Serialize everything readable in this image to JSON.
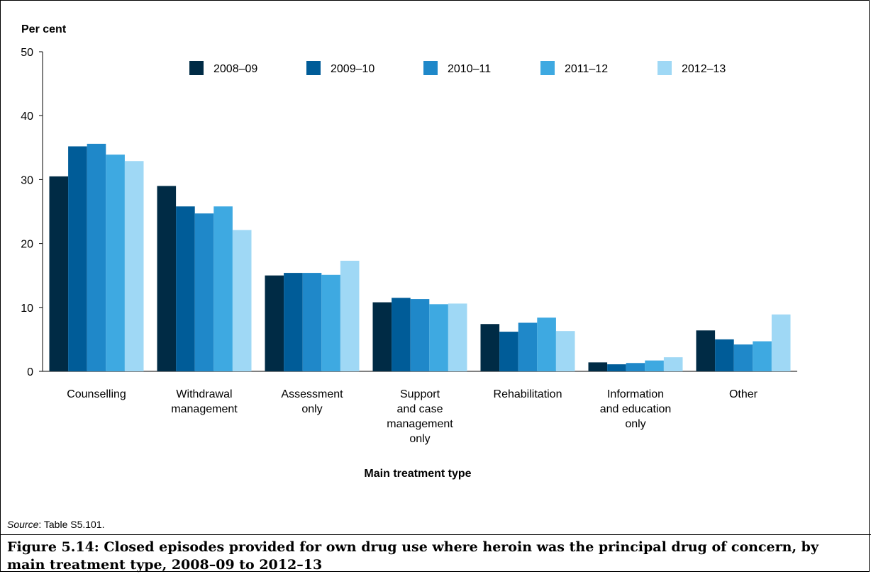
{
  "chart_data": {
    "type": "bar",
    "ylabel": "Per cent",
    "xlabel": "Main treatment type",
    "ylim": [
      0,
      50
    ],
    "yticks": [
      0,
      10,
      20,
      30,
      40,
      50
    ],
    "grid": false,
    "legend_position": "top",
    "categories": [
      [
        "Counselling"
      ],
      [
        "Withdrawal",
        "management"
      ],
      [
        "Assessment",
        "only"
      ],
      [
        "Support",
        "and case",
        "management",
        "only"
      ],
      [
        "Rehabilitation"
      ],
      [
        "Information",
        "and education",
        "only"
      ],
      [
        "Other"
      ]
    ],
    "series": [
      {
        "name": "2008–09",
        "color": "#002b45",
        "values": [
          30.5,
          29.0,
          15.0,
          10.8,
          7.4,
          1.4,
          6.4
        ]
      },
      {
        "name": "2009–10",
        "color": "#005c98",
        "values": [
          35.2,
          25.8,
          15.4,
          11.5,
          6.2,
          1.1,
          5.0
        ]
      },
      {
        "name": "2010–11",
        "color": "#1f88c9",
        "values": [
          35.6,
          24.7,
          15.4,
          11.3,
          7.6,
          1.3,
          4.2
        ]
      },
      {
        "name": "2011–12",
        "color": "#3ea9e1",
        "values": [
          33.9,
          25.8,
          15.1,
          10.5,
          8.4,
          1.7,
          4.7
        ]
      },
      {
        "name": "2012–13",
        "color": "#9fd8f5",
        "values": [
          32.9,
          22.1,
          17.3,
          10.6,
          6.3,
          2.2,
          8.9
        ]
      }
    ]
  },
  "source": {
    "label": "Source",
    "text": ": Table S5.101."
  },
  "caption": "Figure 5.14: Closed episodes provided for own drug use where heroin was the principal drug of concern, by main treatment type, 2008–09 to 2012–13"
}
